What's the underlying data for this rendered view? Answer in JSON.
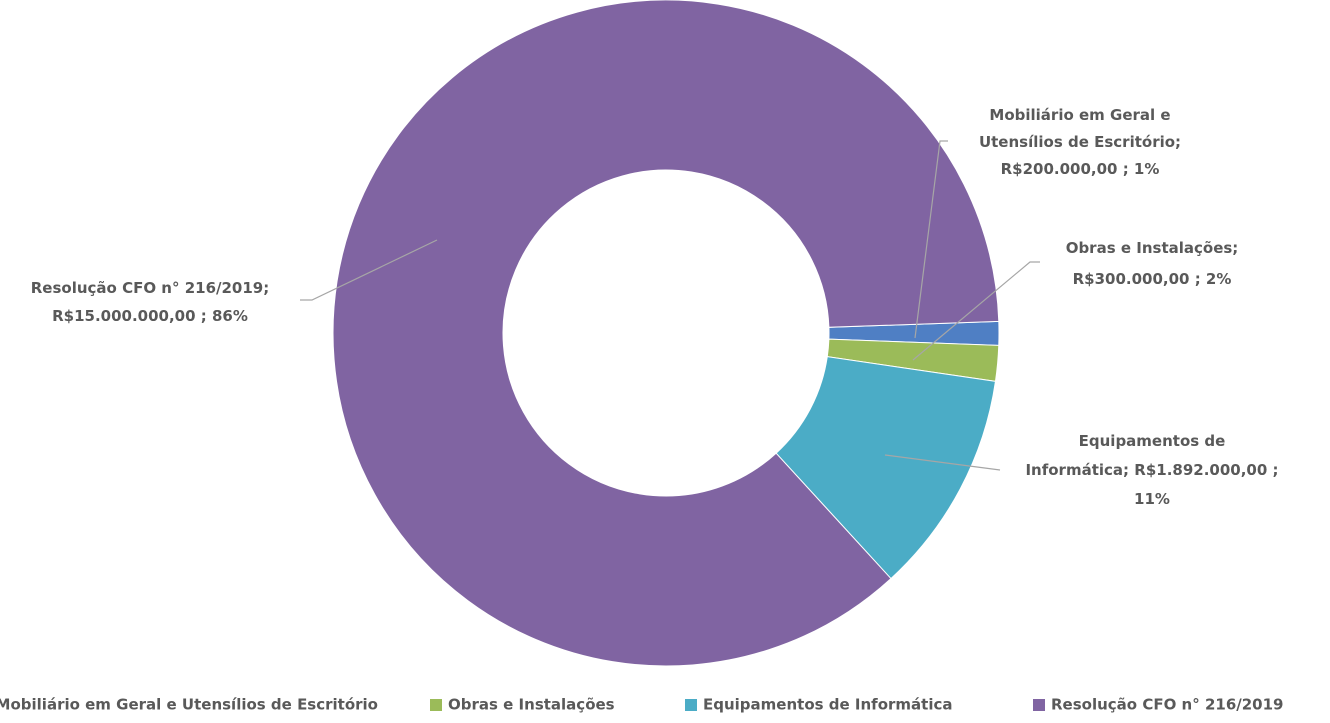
{
  "chart_data": {
    "type": "donut",
    "categories": [
      "Mobiliário em Geral e Utensílios de Escritório",
      "Obras e Instalações",
      "Equipamentos de Informática",
      "Resolução CFO n° 216/2019"
    ],
    "values": [
      200000,
      300000,
      1892000,
      15000000
    ],
    "value_labels": [
      "R$200.000,00",
      "R$300.000,00",
      "R$1.892.000,00",
      "R$15.000.000,00"
    ],
    "percents": [
      1,
      2,
      11,
      86
    ],
    "percent_labels": [
      "1%",
      "2%",
      "11%",
      "86%"
    ],
    "label_separator": ";",
    "colors": [
      "#4f7fc4",
      "#9bbb59",
      "#4bacc6",
      "#8064a2"
    ],
    "start_angle": 88,
    "legend": "bottom"
  }
}
